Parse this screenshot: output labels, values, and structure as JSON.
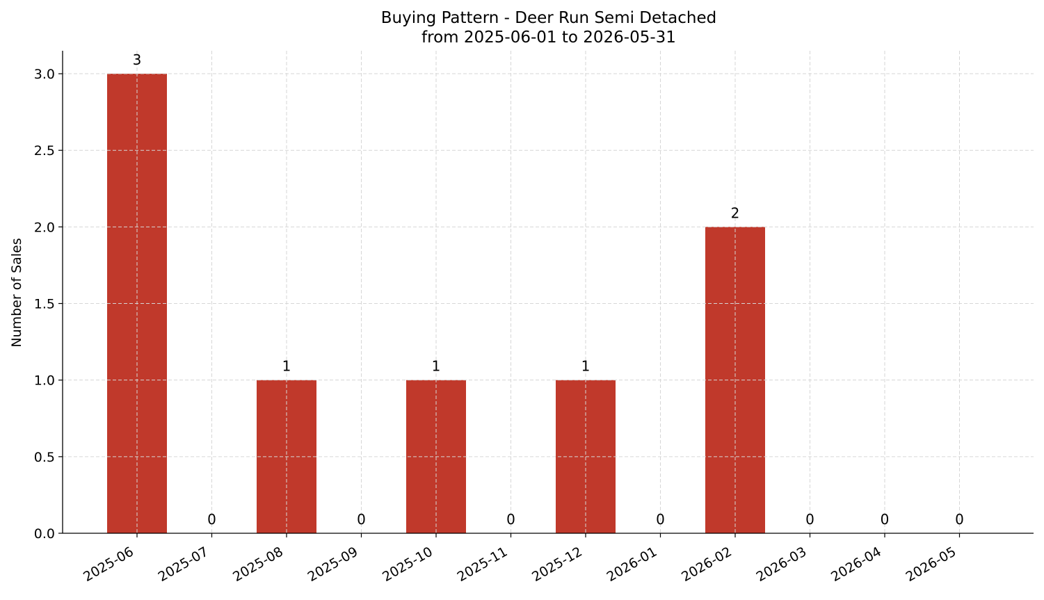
{
  "chart_data": {
    "type": "bar",
    "title": "Buying Pattern - Deer Run Semi Detached",
    "subtitle": "from 2025-06-01 to 2026-05-31",
    "xlabel": "",
    "ylabel": "Number of Sales",
    "categories": [
      "2025-06",
      "2025-07",
      "2025-08",
      "2025-09",
      "2025-10",
      "2025-11",
      "2025-12",
      "2026-01",
      "2026-02",
      "2026-03",
      "2026-04",
      "2026-05"
    ],
    "values": [
      3,
      0,
      1,
      0,
      1,
      0,
      1,
      0,
      2,
      0,
      0,
      0
    ],
    "data_labels": [
      "3",
      "0",
      "1",
      "0",
      "1",
      "0",
      "1",
      "0",
      "2",
      "0",
      "0",
      "0"
    ],
    "ylim": [
      0,
      3.15
    ],
    "yticks": [
      0.0,
      0.5,
      1.0,
      1.5,
      2.0,
      2.5,
      3.0
    ],
    "ytick_labels": [
      "0.0",
      "0.5",
      "1.0",
      "1.5",
      "2.0",
      "2.5",
      "3.0"
    ],
    "grid": true,
    "colors": {
      "bar": "#c0392b"
    }
  }
}
